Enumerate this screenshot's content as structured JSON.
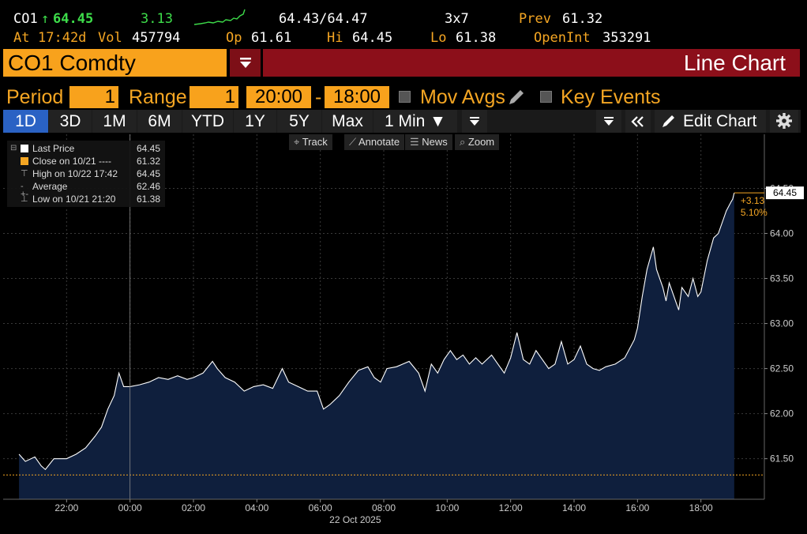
{
  "quote": {
    "ticker": "CO1",
    "arrow": "↑",
    "last": "64.45",
    "change": "3.13",
    "bid_ask": "64.43/64.47",
    "size": "3x7",
    "prev_label": "Prev",
    "prev": "61.32",
    "at_label": "At",
    "time": "17:42d",
    "vol_label": "Vol",
    "vol": "457794",
    "op_label": "Op",
    "op": "61.61",
    "hi_label": "Hi",
    "hi": "64.45",
    "lo_label": "Lo",
    "lo": "61.38",
    "oi_label": "OpenInt",
    "oi": "353291"
  },
  "header": {
    "security": "CO1 Comdty",
    "dropdown_icon": "menu-lines-icon",
    "title": "Line Chart"
  },
  "controls": {
    "period_label": "Period",
    "period_value": "1",
    "range_label": "Range",
    "range_value": "1",
    "start_time": "20:00",
    "dash": "-",
    "end_time": "18:00",
    "mov_avgs_label": "Mov Avgs",
    "key_events_label": "Key Events"
  },
  "tabs": [
    {
      "label": "1D",
      "active": true
    },
    {
      "label": "3D"
    },
    {
      "label": "1M"
    },
    {
      "label": "6M"
    },
    {
      "label": "YTD"
    },
    {
      "label": "1Y"
    },
    {
      "label": "5Y"
    },
    {
      "label": "Max"
    },
    {
      "label": "1 Min ▼"
    }
  ],
  "toolbar": {
    "edit_chart_label": "Edit Chart"
  },
  "chart_tools": [
    {
      "icon": "crosshair-icon",
      "glyph": "⌖",
      "label": "Track"
    },
    {
      "icon": "annotate-icon",
      "glyph": "⟋",
      "label": "Annotate"
    },
    {
      "icon": "news-icon",
      "glyph": "☰",
      "label": "News"
    },
    {
      "icon": "zoom-icon",
      "glyph": "⌕",
      "label": "Zoom"
    }
  ],
  "legend": [
    {
      "icon": "white-square-icon",
      "name": "Last Price",
      "value": "64.45"
    },
    {
      "icon": "orange-square-icon",
      "name": "Close on 10/21 ----",
      "value": "61.32"
    },
    {
      "icon": "high-marker-icon",
      "name": "High on 10/22 17:42",
      "value": "64.45"
    },
    {
      "icon": "average-marker-icon",
      "name": "Average",
      "value": "62.46"
    },
    {
      "icon": "low-marker-icon",
      "name": "Low on 10/21 21:20",
      "value": "61.38"
    }
  ],
  "chart_data": {
    "type": "area",
    "series": [
      {
        "name": "Last Price",
        "color": "#ffffff",
        "fill": "#0f1f3d",
        "points": [
          [
            20.5,
            61.55
          ],
          [
            20.7,
            61.47
          ],
          [
            21.0,
            61.52
          ],
          [
            21.2,
            61.42
          ],
          [
            21.33,
            61.38
          ],
          [
            21.6,
            61.5
          ],
          [
            22.0,
            61.5
          ],
          [
            22.3,
            61.55
          ],
          [
            22.6,
            61.62
          ],
          [
            22.9,
            61.75
          ],
          [
            23.1,
            61.85
          ],
          [
            23.3,
            62.05
          ],
          [
            23.5,
            62.2
          ],
          [
            23.65,
            62.45
          ],
          [
            23.8,
            62.3
          ],
          [
            24.0,
            62.3
          ],
          [
            24.3,
            62.32
          ],
          [
            24.6,
            62.35
          ],
          [
            24.9,
            62.4
          ],
          [
            25.2,
            62.38
          ],
          [
            25.5,
            62.42
          ],
          [
            25.8,
            62.38
          ],
          [
            26.0,
            62.4
          ],
          [
            26.3,
            62.45
          ],
          [
            26.6,
            62.58
          ],
          [
            26.75,
            62.5
          ],
          [
            27.0,
            62.4
          ],
          [
            27.3,
            62.35
          ],
          [
            27.6,
            62.25
          ],
          [
            27.9,
            62.3
          ],
          [
            28.2,
            62.32
          ],
          [
            28.5,
            62.28
          ],
          [
            28.8,
            62.5
          ],
          [
            29.0,
            62.35
          ],
          [
            29.3,
            62.3
          ],
          [
            29.6,
            62.25
          ],
          [
            29.9,
            62.25
          ],
          [
            30.1,
            62.05
          ],
          [
            30.3,
            62.1
          ],
          [
            30.6,
            62.2
          ],
          [
            30.9,
            62.35
          ],
          [
            31.2,
            62.48
          ],
          [
            31.5,
            62.52
          ],
          [
            31.7,
            62.4
          ],
          [
            31.9,
            62.35
          ],
          [
            32.1,
            62.5
          ],
          [
            32.4,
            62.52
          ],
          [
            32.6,
            62.55
          ],
          [
            32.8,
            62.58
          ],
          [
            33.1,
            62.45
          ],
          [
            33.3,
            62.25
          ],
          [
            33.5,
            62.55
          ],
          [
            33.7,
            62.45
          ],
          [
            33.9,
            62.6
          ],
          [
            34.1,
            62.7
          ],
          [
            34.3,
            62.6
          ],
          [
            34.5,
            62.65
          ],
          [
            34.7,
            62.55
          ],
          [
            34.9,
            62.62
          ],
          [
            35.1,
            62.55
          ],
          [
            35.4,
            62.65
          ],
          [
            35.6,
            62.55
          ],
          [
            35.8,
            62.45
          ],
          [
            36.0,
            62.62
          ],
          [
            36.2,
            62.9
          ],
          [
            36.4,
            62.6
          ],
          [
            36.6,
            62.55
          ],
          [
            36.8,
            62.7
          ],
          [
            37.0,
            62.6
          ],
          [
            37.2,
            62.5
          ],
          [
            37.4,
            62.55
          ],
          [
            37.6,
            62.8
          ],
          [
            37.8,
            62.55
          ],
          [
            38.0,
            62.6
          ],
          [
            38.2,
            62.75
          ],
          [
            38.4,
            62.55
          ],
          [
            38.6,
            62.5
          ],
          [
            38.8,
            62.48
          ],
          [
            39.0,
            62.52
          ],
          [
            39.3,
            62.55
          ],
          [
            39.6,
            62.62
          ],
          [
            39.9,
            62.82
          ],
          [
            40.0,
            62.95
          ],
          [
            40.15,
            63.3
          ],
          [
            40.3,
            63.6
          ],
          [
            40.5,
            63.85
          ],
          [
            40.6,
            63.6
          ],
          [
            40.8,
            63.4
          ],
          [
            40.9,
            63.25
          ],
          [
            41.0,
            63.45
          ],
          [
            41.15,
            63.3
          ],
          [
            41.3,
            63.15
          ],
          [
            41.4,
            63.4
          ],
          [
            41.6,
            63.3
          ],
          [
            41.75,
            63.5
          ],
          [
            41.9,
            63.3
          ],
          [
            42.0,
            63.35
          ],
          [
            42.2,
            63.7
          ],
          [
            42.4,
            63.95
          ],
          [
            42.55,
            64.0
          ],
          [
            42.7,
            64.15
          ],
          [
            42.8,
            64.25
          ],
          [
            42.95,
            64.35
          ],
          [
            43.0,
            64.38
          ],
          [
            43.05,
            64.45
          ]
        ]
      }
    ],
    "reference_line": {
      "name": "Close on 10/21",
      "value": 61.32,
      "color": "#f5a623"
    },
    "last_label": "64.45",
    "change_label": "+3.13",
    "pct_label": "5.10%",
    "xlim": [
      20.0,
      44.0
    ],
    "ylim": [
      61.05,
      65.1
    ],
    "x_ticks": [
      {
        "x": 22,
        "label": "22:00"
      },
      {
        "x": 24,
        "label": "00:00"
      },
      {
        "x": 26,
        "label": "02:00"
      },
      {
        "x": 28,
        "label": "04:00"
      },
      {
        "x": 30,
        "label": "06:00"
      },
      {
        "x": 32,
        "label": "08:00"
      },
      {
        "x": 34,
        "label": "10:00"
      },
      {
        "x": 36,
        "label": "12:00"
      },
      {
        "x": 38,
        "label": "14:00"
      },
      {
        "x": 40,
        "label": "16:00"
      },
      {
        "x": 42,
        "label": "18:00"
      }
    ],
    "date_label": "22 Oct 2025",
    "y_ticks": [
      {
        "y": 61.5,
        "label": "61.50"
      },
      {
        "y": 62.0,
        "label": "62.00"
      },
      {
        "y": 62.5,
        "label": "62.50"
      },
      {
        "y": 63.0,
        "label": "63.00"
      },
      {
        "y": 63.5,
        "label": "63.50"
      },
      {
        "y": 64.0,
        "label": "64.00"
      },
      {
        "y": 64.5,
        "label": "64.50"
      }
    ],
    "grid": true,
    "legend_position": "top-left"
  }
}
